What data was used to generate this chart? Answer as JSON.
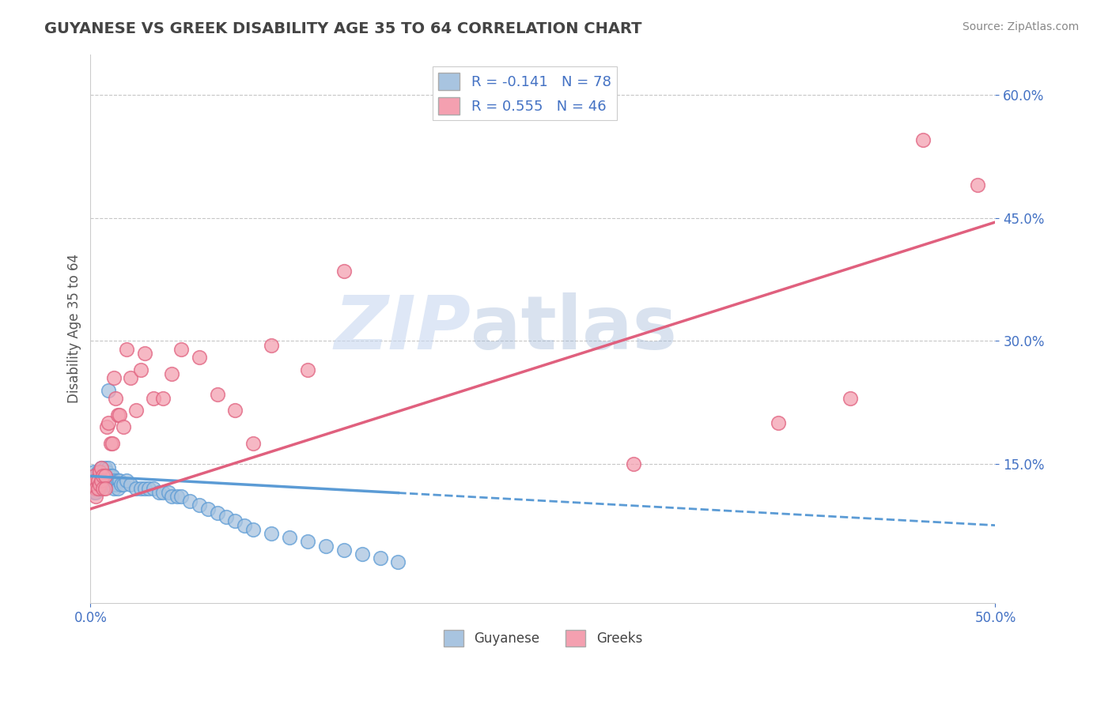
{
  "title": "GUYANESE VS GREEK DISABILITY AGE 35 TO 64 CORRELATION CHART",
  "source": "Source: ZipAtlas.com",
  "ylabel": "Disability Age 35 to 64",
  "legend_guyanese": "Guyanese",
  "legend_greeks": "Greeks",
  "r_guyanese": -0.141,
  "n_guyanese": 78,
  "r_greeks": 0.555,
  "n_greeks": 46,
  "xlim": [
    0.0,
    0.5
  ],
  "ylim": [
    -0.02,
    0.65
  ],
  "yticks": [
    0.15,
    0.3,
    0.45,
    0.6
  ],
  "ytick_labels": [
    "15.0%",
    "30.0%",
    "45.0%",
    "60.0%"
  ],
  "color_guyanese": "#a8c4e0",
  "color_greeks": "#f4a0b0",
  "color_guyanese_line": "#5b9bd5",
  "color_greeks_line": "#e0607e",
  "color_title": "#555555",
  "watermark_zip": "ZIP",
  "watermark_atlas": "atlas",
  "guyanese_x": [
    0.001,
    0.001,
    0.001,
    0.002,
    0.002,
    0.002,
    0.002,
    0.002,
    0.003,
    0.003,
    0.003,
    0.003,
    0.003,
    0.004,
    0.004,
    0.004,
    0.004,
    0.005,
    0.005,
    0.005,
    0.005,
    0.006,
    0.006,
    0.006,
    0.006,
    0.007,
    0.007,
    0.007,
    0.008,
    0.008,
    0.008,
    0.009,
    0.009,
    0.01,
    0.01,
    0.01,
    0.011,
    0.011,
    0.012,
    0.012,
    0.013,
    0.013,
    0.014,
    0.015,
    0.015,
    0.016,
    0.017,
    0.018,
    0.02,
    0.022,
    0.025,
    0.028,
    0.03,
    0.032,
    0.035,
    0.038,
    0.04,
    0.043,
    0.045,
    0.048,
    0.05,
    0.055,
    0.06,
    0.065,
    0.07,
    0.075,
    0.08,
    0.085,
    0.09,
    0.1,
    0.11,
    0.12,
    0.13,
    0.14,
    0.15,
    0.16,
    0.17,
    0.01
  ],
  "guyanese_y": [
    0.13,
    0.125,
    0.12,
    0.14,
    0.13,
    0.125,
    0.12,
    0.115,
    0.135,
    0.13,
    0.125,
    0.12,
    0.115,
    0.14,
    0.135,
    0.125,
    0.12,
    0.14,
    0.135,
    0.13,
    0.12,
    0.145,
    0.135,
    0.13,
    0.125,
    0.14,
    0.135,
    0.125,
    0.145,
    0.135,
    0.125,
    0.14,
    0.13,
    0.145,
    0.135,
    0.125,
    0.135,
    0.125,
    0.135,
    0.125,
    0.13,
    0.12,
    0.125,
    0.13,
    0.12,
    0.13,
    0.125,
    0.125,
    0.13,
    0.125,
    0.12,
    0.12,
    0.12,
    0.12,
    0.12,
    0.115,
    0.115,
    0.115,
    0.11,
    0.11,
    0.11,
    0.105,
    0.1,
    0.095,
    0.09,
    0.085,
    0.08,
    0.075,
    0.07,
    0.065,
    0.06,
    0.055,
    0.05,
    0.045,
    0.04,
    0.035,
    0.03,
    0.24
  ],
  "greeks_x": [
    0.001,
    0.002,
    0.002,
    0.003,
    0.003,
    0.003,
    0.004,
    0.004,
    0.005,
    0.005,
    0.006,
    0.006,
    0.007,
    0.007,
    0.008,
    0.008,
    0.009,
    0.01,
    0.011,
    0.012,
    0.013,
    0.014,
    0.015,
    0.016,
    0.018,
    0.02,
    0.022,
    0.025,
    0.028,
    0.03,
    0.035,
    0.04,
    0.045,
    0.05,
    0.06,
    0.07,
    0.08,
    0.09,
    0.1,
    0.12,
    0.14,
    0.3,
    0.38,
    0.42,
    0.46,
    0.49
  ],
  "greeks_y": [
    0.125,
    0.135,
    0.125,
    0.13,
    0.12,
    0.11,
    0.13,
    0.12,
    0.14,
    0.125,
    0.145,
    0.13,
    0.135,
    0.12,
    0.135,
    0.12,
    0.195,
    0.2,
    0.175,
    0.175,
    0.255,
    0.23,
    0.21,
    0.21,
    0.195,
    0.29,
    0.255,
    0.215,
    0.265,
    0.285,
    0.23,
    0.23,
    0.26,
    0.29,
    0.28,
    0.235,
    0.215,
    0.175,
    0.295,
    0.265,
    0.385,
    0.15,
    0.2,
    0.23,
    0.545,
    0.49
  ],
  "guyanese_line_x": [
    0.0,
    0.5
  ],
  "guyanese_line_y": [
    0.135,
    0.075
  ],
  "greeks_line_x": [
    0.0,
    0.5
  ],
  "greeks_line_y": [
    0.095,
    0.445
  ]
}
